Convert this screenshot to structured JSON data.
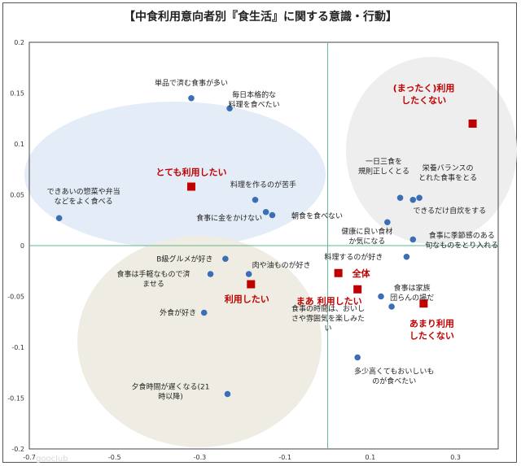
{
  "chart_data": {
    "type": "scatter",
    "title": "【中食利用意向者別『食生活』に関する意識・行動】",
    "xlabel": "",
    "ylabel": "",
    "xlim": [
      -0.7,
      0.4
    ],
    "ylim": [
      -0.2,
      0.2
    ],
    "x_ticks": [
      -0.7,
      -0.5,
      -0.3,
      -0.1,
      0.1,
      0.3
    ],
    "x_tick_labels": [
      "-0.7",
      "-0.5",
      "-0.3",
      "-0.1",
      "0.1",
      "0.3"
    ],
    "y_ticks": [
      0.2,
      0.15,
      0.1,
      0.05,
      0,
      -0.05,
      -0.1,
      -0.15,
      -0.2
    ],
    "y_tick_labels": [
      "0.2",
      "0.15",
      "0.1",
      "0.05",
      "0",
      "-0.05",
      "-0.1",
      "-0.15",
      "-0.2"
    ],
    "grid": false,
    "colors": {
      "attribute_point": "#3a6fb5",
      "group_point": "#c00000",
      "axis_line": "#5fb88a",
      "ellipse_blue": "#e4ecf7",
      "ellipse_beige": "#efede3",
      "ellipse_gray": "#eeeeee"
    },
    "series": [
      {
        "name": "attributes",
        "marker": "circle",
        "points": [
          {
            "label": "単品で済む食事が多い",
            "x": -0.32,
            "y": 0.145
          },
          {
            "label": "毎日本格的な料理を食べたい",
            "x": -0.23,
            "y": 0.135
          },
          {
            "label": "できあいの惣菜や弁当などをよく食べる",
            "x": -0.63,
            "y": 0.027
          },
          {
            "label": "料理を作るのが苦手",
            "x": -0.17,
            "y": 0.045
          },
          {
            "label": "食事に金をかけない",
            "x": -0.145,
            "y": 0.033
          },
          {
            "label": "朝食を食べない",
            "x": -0.13,
            "y": 0.03
          },
          {
            "label": "一日三食を規則正しくとる",
            "x": 0.17,
            "y": 0.047
          },
          {
            "label": "栄養バランスのとれた食事をとる",
            "x": 0.215,
            "y": 0.047
          },
          {
            "label": "できるだけ自炊をする",
            "x": 0.2,
            "y": 0.045
          },
          {
            "label": "健康に良い食材が気になる",
            "x": 0.14,
            "y": 0.023
          },
          {
            "label": "食事に季節感のある旬なものをとり入れる",
            "x": 0.2,
            "y": 0.006
          },
          {
            "label": "料理するのが好き",
            "x": 0.185,
            "y": -0.011
          },
          {
            "label": "B級グルメが好き",
            "x": -0.24,
            "y": -0.013
          },
          {
            "label": "肉や油ものが好き",
            "x": -0.185,
            "y": -0.028
          },
          {
            "label": "食事は手軽なもので済ませる",
            "x": -0.275,
            "y": -0.028
          },
          {
            "label": "外食が好き",
            "x": -0.29,
            "y": -0.066
          },
          {
            "label": "食事は家族団らんの場だ",
            "x": 0.15,
            "y": -0.06
          },
          {
            "label": "食事の時間は、おいしさや雰囲気を楽しみたい",
            "x": 0.125,
            "y": -0.05
          },
          {
            "label": "多少高くてもおいしいものが食べたい",
            "x": 0.07,
            "y": -0.11
          },
          {
            "label": "夕食時間が遅くなる(21時以降)",
            "x": -0.235,
            "y": -0.146
          }
        ]
      },
      {
        "name": "groups",
        "marker": "square",
        "points": [
          {
            "label": "とても利用したい",
            "x": -0.32,
            "y": 0.058
          },
          {
            "label": "(まったく)利用したくない",
            "x": 0.34,
            "y": 0.12
          },
          {
            "label": "全体",
            "x": 0.025,
            "y": -0.027
          },
          {
            "label": "まあ 利用したい",
            "x": 0.07,
            "y": -0.043
          },
          {
            "label": "利用したい",
            "x": -0.18,
            "y": -0.038
          },
          {
            "label": "あまり利用したくない",
            "x": 0.225,
            "y": -0.057
          }
        ]
      }
    ]
  },
  "watermark": "gooclub"
}
